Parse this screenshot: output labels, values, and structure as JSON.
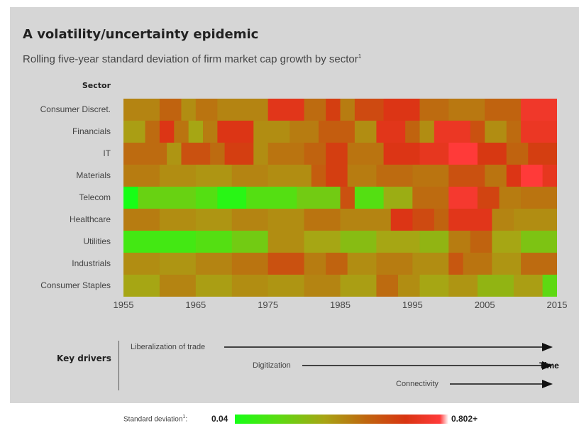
{
  "title": "A volatility/uncertainty epidemic",
  "subtitle": "Rolling five-year standard deviation of firm market cap growth by sector",
  "footnote_marker": "1",
  "drivers": {
    "heading": "Key drivers",
    "items": [
      "Liberalization of trade",
      "Digitization",
      "Connectivity"
    ],
    "time_label": "Time"
  },
  "legend": {
    "label": "Standard deviation",
    "footnote_marker": "1",
    "colon": ":",
    "min_label": "0.04",
    "max_label": "0.802+",
    "colors": [
      "#16ff16",
      "#5adc12",
      "#a8a414",
      "#c0640f",
      "#d93512",
      "#ff3a3a"
    ]
  },
  "chart_data": {
    "type": "heatmap",
    "ylabel": "Sector",
    "rows": [
      "Consumer Discret.",
      "Financials",
      "IT",
      "Materials",
      "Telecom",
      "Healthcare",
      "Utilities",
      "Industrials",
      "Consumer Staples"
    ],
    "x_start": 1955,
    "x_end": 2015,
    "x_ticks": [
      1955,
      1965,
      1975,
      1985,
      1995,
      2005,
      2015
    ],
    "value_range": [
      0.04,
      0.802
    ],
    "segments": [
      [
        [
          1955,
          1960,
          0.42
        ],
        [
          1960,
          1963,
          0.5
        ],
        [
          1963,
          1965,
          0.4
        ],
        [
          1965,
          1968,
          0.46
        ],
        [
          1968,
          1975,
          0.42
        ],
        [
          1975,
          1980,
          0.68
        ],
        [
          1980,
          1983,
          0.48
        ],
        [
          1983,
          1985,
          0.62
        ],
        [
          1985,
          1987,
          0.44
        ],
        [
          1987,
          1991,
          0.58
        ],
        [
          1991,
          1996,
          0.66
        ],
        [
          1996,
          2000,
          0.48
        ],
        [
          2000,
          2005,
          0.45
        ],
        [
          2005,
          2010,
          0.5
        ],
        [
          2010,
          2015,
          0.74
        ]
      ],
      [
        [
          1955,
          1958,
          0.36
        ],
        [
          1958,
          1960,
          0.48
        ],
        [
          1960,
          1962,
          0.66
        ],
        [
          1962,
          1964,
          0.46
        ],
        [
          1964,
          1966,
          0.34
        ],
        [
          1966,
          1968,
          0.44
        ],
        [
          1968,
          1973,
          0.66
        ],
        [
          1973,
          1978,
          0.4
        ],
        [
          1978,
          1982,
          0.44
        ],
        [
          1982,
          1987,
          0.52
        ],
        [
          1987,
          1990,
          0.4
        ],
        [
          1990,
          1994,
          0.68
        ],
        [
          1994,
          1996,
          0.5
        ],
        [
          1996,
          1998,
          0.4
        ],
        [
          1998,
          2003,
          0.72
        ],
        [
          2003,
          2005,
          0.56
        ],
        [
          2005,
          2008,
          0.4
        ],
        [
          2008,
          2010,
          0.48
        ],
        [
          2010,
          2015,
          0.72
        ]
      ],
      [
        [
          1955,
          1961,
          0.48
        ],
        [
          1961,
          1963,
          0.38
        ],
        [
          1963,
          1967,
          0.56
        ],
        [
          1967,
          1969,
          0.48
        ],
        [
          1969,
          1973,
          0.62
        ],
        [
          1973,
          1975,
          0.4
        ],
        [
          1975,
          1980,
          0.46
        ],
        [
          1980,
          1983,
          0.5
        ],
        [
          1983,
          1986,
          0.62
        ],
        [
          1986,
          1991,
          0.46
        ],
        [
          1991,
          1996,
          0.66
        ],
        [
          1996,
          2000,
          0.7
        ],
        [
          2000,
          2004,
          0.8
        ],
        [
          2004,
          2008,
          0.64
        ],
        [
          2008,
          2011,
          0.5
        ],
        [
          2011,
          2015,
          0.62
        ]
      ],
      [
        [
          1955,
          1960,
          0.44
        ],
        [
          1960,
          1965,
          0.4
        ],
        [
          1965,
          1970,
          0.38
        ],
        [
          1970,
          1975,
          0.42
        ],
        [
          1975,
          1981,
          0.4
        ],
        [
          1981,
          1983,
          0.52
        ],
        [
          1983,
          1986,
          0.62
        ],
        [
          1986,
          1990,
          0.44
        ],
        [
          1990,
          1995,
          0.48
        ],
        [
          1995,
          2000,
          0.46
        ],
        [
          2000,
          2005,
          0.56
        ],
        [
          2005,
          2008,
          0.46
        ],
        [
          2008,
          2010,
          0.66
        ],
        [
          2010,
          2013,
          0.8
        ],
        [
          2013,
          2015,
          0.7
        ]
      ],
      [
        [
          1955,
          1957,
          0.04
        ],
        [
          1957,
          1965,
          0.22
        ],
        [
          1965,
          1968,
          0.18
        ],
        [
          1968,
          1972,
          0.08
        ],
        [
          1972,
          1979,
          0.18
        ],
        [
          1979,
          1985,
          0.24
        ],
        [
          1985,
          1987,
          0.56
        ],
        [
          1987,
          1991,
          0.18
        ],
        [
          1991,
          1995,
          0.32
        ],
        [
          1995,
          2000,
          0.48
        ],
        [
          2000,
          2004,
          0.76
        ],
        [
          2004,
          2007,
          0.6
        ],
        [
          2007,
          2010,
          0.44
        ],
        [
          2010,
          2015,
          0.46
        ]
      ],
      [
        [
          1955,
          1960,
          0.44
        ],
        [
          1960,
          1965,
          0.4
        ],
        [
          1965,
          1970,
          0.38
        ],
        [
          1970,
          1975,
          0.42
        ],
        [
          1975,
          1980,
          0.4
        ],
        [
          1980,
          1985,
          0.46
        ],
        [
          1985,
          1992,
          0.42
        ],
        [
          1992,
          1995,
          0.66
        ],
        [
          1995,
          1998,
          0.58
        ],
        [
          1998,
          2000,
          0.5
        ],
        [
          2000,
          2006,
          0.68
        ],
        [
          2006,
          2009,
          0.42
        ],
        [
          2009,
          2015,
          0.4
        ]
      ],
      [
        [
          1955,
          1965,
          0.14
        ],
        [
          1965,
          1970,
          0.18
        ],
        [
          1970,
          1975,
          0.24
        ],
        [
          1975,
          1980,
          0.4
        ],
        [
          1980,
          1985,
          0.34
        ],
        [
          1985,
          1990,
          0.28
        ],
        [
          1990,
          1996,
          0.34
        ],
        [
          1996,
          2000,
          0.3
        ],
        [
          2000,
          2003,
          0.44
        ],
        [
          2003,
          2006,
          0.5
        ],
        [
          2006,
          2010,
          0.34
        ],
        [
          2010,
          2015,
          0.26
        ]
      ],
      [
        [
          1955,
          1960,
          0.4
        ],
        [
          1960,
          1965,
          0.38
        ],
        [
          1965,
          1970,
          0.42
        ],
        [
          1970,
          1975,
          0.46
        ],
        [
          1975,
          1980,
          0.56
        ],
        [
          1980,
          1983,
          0.44
        ],
        [
          1983,
          1986,
          0.5
        ],
        [
          1986,
          1990,
          0.4
        ],
        [
          1990,
          1995,
          0.44
        ],
        [
          1995,
          2000,
          0.4
        ],
        [
          2000,
          2002,
          0.54
        ],
        [
          2002,
          2006,
          0.46
        ],
        [
          2006,
          2010,
          0.38
        ],
        [
          2010,
          2015,
          0.48
        ]
      ],
      [
        [
          1955,
          1960,
          0.34
        ],
        [
          1960,
          1965,
          0.42
        ],
        [
          1965,
          1970,
          0.36
        ],
        [
          1970,
          1975,
          0.4
        ],
        [
          1975,
          1980,
          0.38
        ],
        [
          1980,
          1985,
          0.42
        ],
        [
          1985,
          1990,
          0.36
        ],
        [
          1990,
          1993,
          0.48
        ],
        [
          1993,
          1996,
          0.4
        ],
        [
          1996,
          2000,
          0.34
        ],
        [
          2000,
          2004,
          0.38
        ],
        [
          2004,
          2009,
          0.3
        ],
        [
          2009,
          2013,
          0.36
        ],
        [
          2013,
          2015,
          0.2
        ]
      ]
    ]
  }
}
